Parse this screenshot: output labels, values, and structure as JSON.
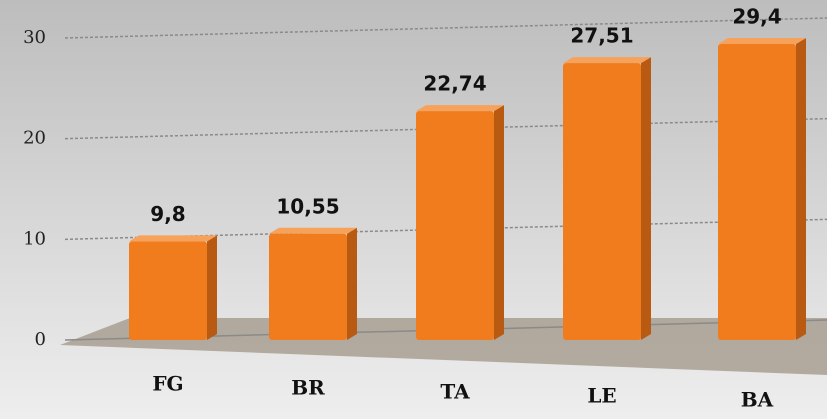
{
  "chart_data": {
    "type": "bar",
    "categories": [
      "FG",
      "BR",
      "TA",
      "LE",
      "BA"
    ],
    "values": [
      9.8,
      10.55,
      22.74,
      27.51,
      29.4
    ],
    "value_labels": [
      "9,8",
      "10,55",
      "22,74",
      "27,51",
      "29,4"
    ],
    "color": "#f07c1e",
    "ylim": [
      0,
      30
    ],
    "yticks": [
      0,
      10,
      20,
      30
    ],
    "grid": true
  }
}
